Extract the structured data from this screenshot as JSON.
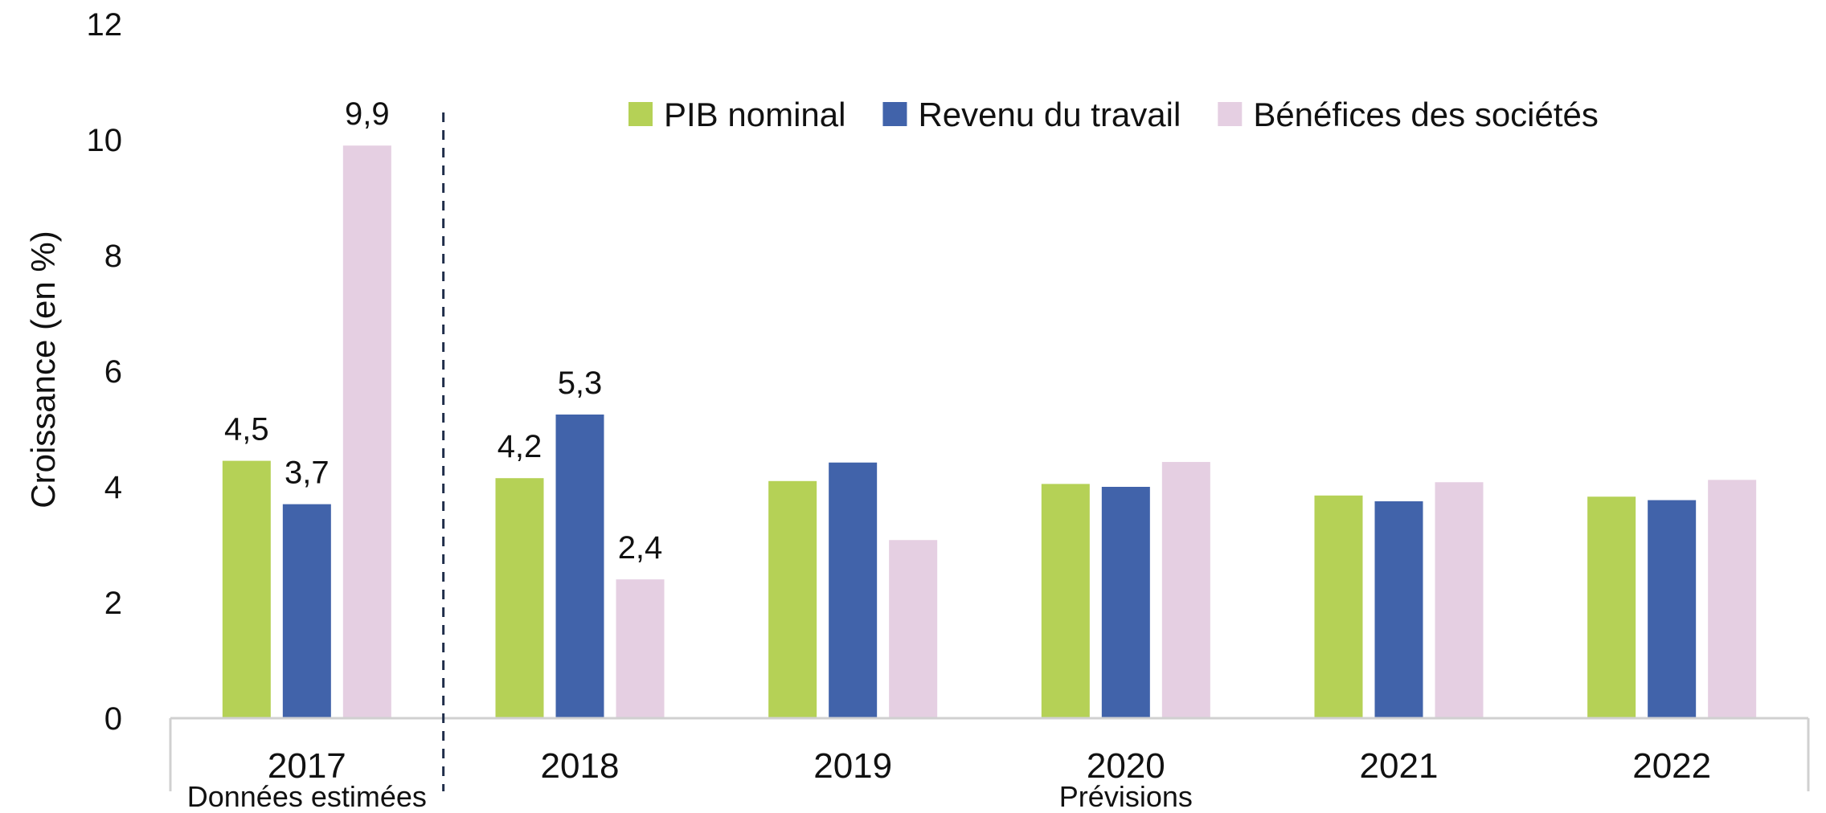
{
  "chart_data": {
    "type": "bar",
    "title": "",
    "xlabel": "",
    "ylabel": "Croissance (en %)",
    "ylim": [
      0,
      12
    ],
    "y_ticks": [
      "0",
      "2",
      "4",
      "6",
      "8",
      "10",
      "12"
    ],
    "grid": false,
    "legend_position": "top",
    "categories": [
      "2017",
      "2018",
      "2019",
      "2020",
      "2021",
      "2022"
    ],
    "series": [
      {
        "name": "PIB nominal",
        "color": "#b5d156",
        "values": [
          4.45,
          4.15,
          4.1,
          4.05,
          3.85,
          3.83
        ]
      },
      {
        "name": "Revenu du travail",
        "color": "#4163aa",
        "values": [
          3.7,
          5.25,
          4.42,
          4.0,
          3.75,
          3.77
        ]
      },
      {
        "name": "Bénéfices des sociétés",
        "color": "#e5cfe2",
        "values": [
          9.9,
          2.4,
          3.08,
          4.43,
          4.08,
          4.12
        ]
      }
    ],
    "data_labels": [
      {
        "series": 0,
        "category": 0,
        "text": "4,5"
      },
      {
        "series": 1,
        "category": 0,
        "text": "3,7"
      },
      {
        "series": 2,
        "category": 0,
        "text": "9,9"
      },
      {
        "series": 0,
        "category": 1,
        "text": "4,2"
      },
      {
        "series": 1,
        "category": 1,
        "text": "5,3"
      },
      {
        "series": 2,
        "category": 1,
        "text": "2,4"
      }
    ],
    "period_labels": [
      {
        "text": "Données estimées",
        "categories": [
          0
        ]
      },
      {
        "text": "Prévisions",
        "categories": [
          1,
          2,
          3,
          4,
          5
        ]
      }
    ],
    "divider": {
      "between_categories": [
        0,
        1
      ],
      "style": "dashed"
    }
  }
}
